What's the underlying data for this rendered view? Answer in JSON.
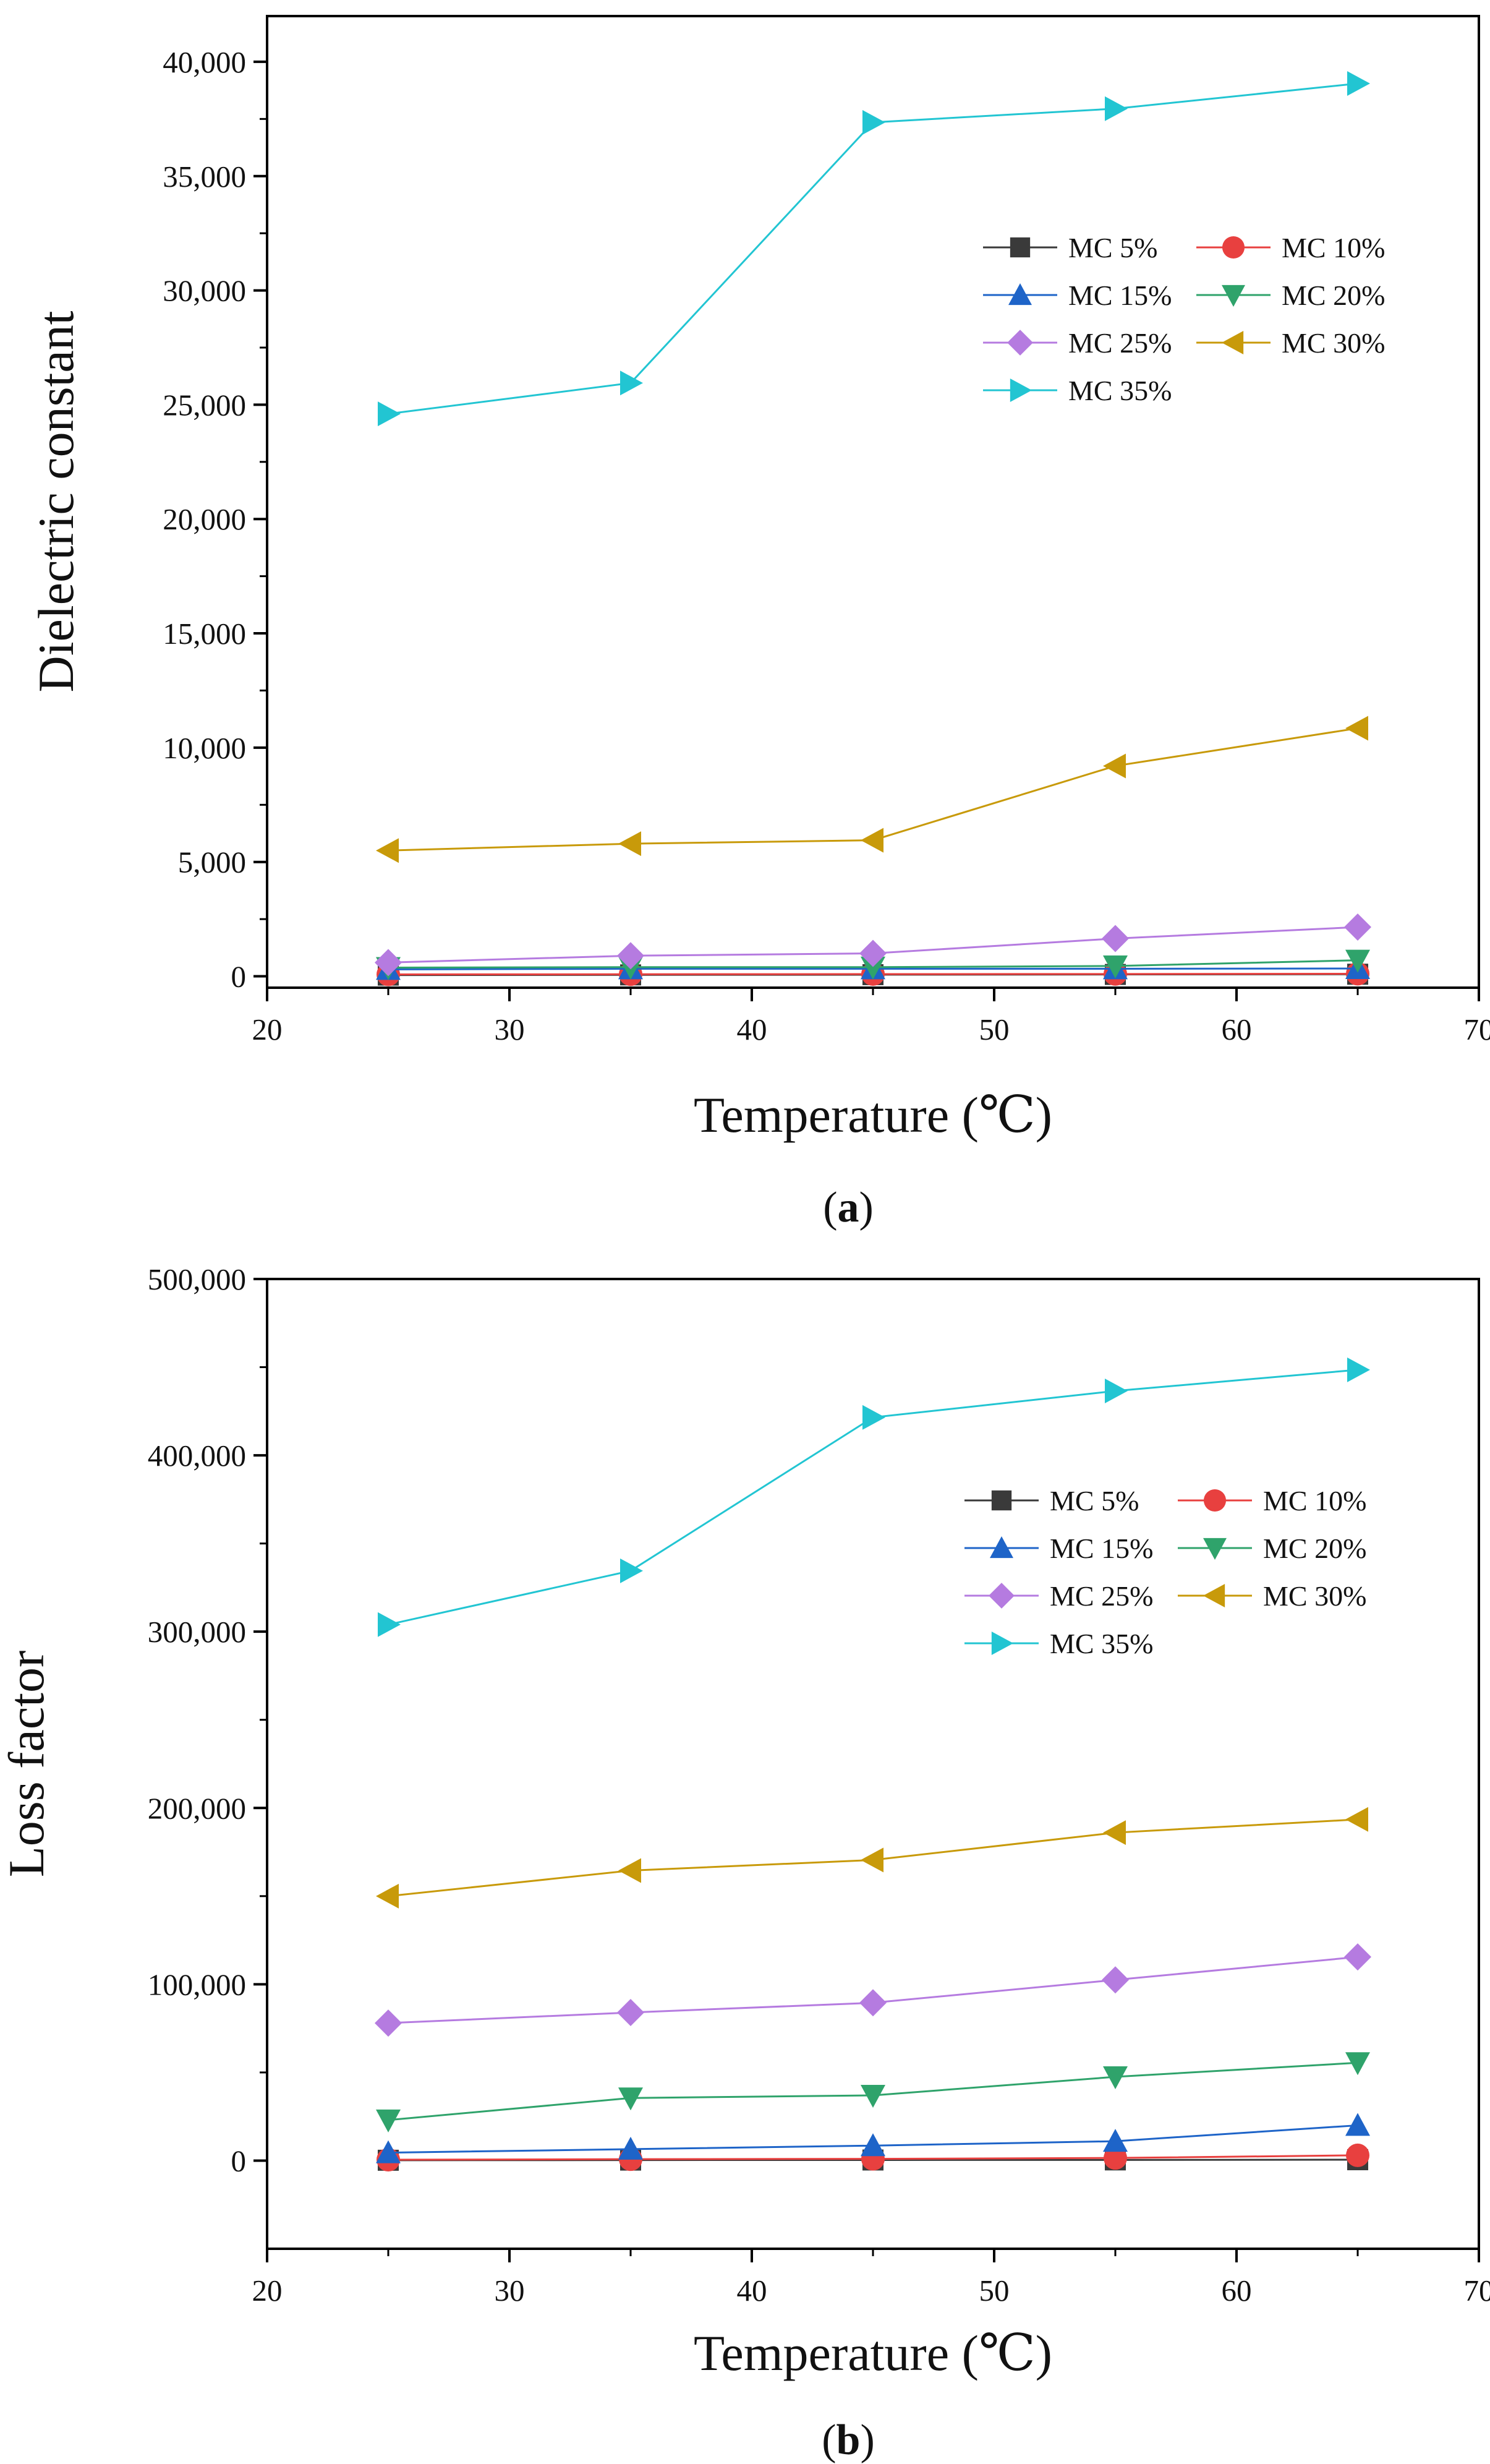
{
  "chart_data": [
    {
      "type": "line",
      "panel_label": "a",
      "xlabel": "Temperature (℃)",
      "ylabel": "Dielectric constant",
      "x": [
        25,
        35,
        45,
        55,
        65
      ],
      "xlim": [
        20,
        70
      ],
      "ylim": [
        -500,
        42000
      ],
      "xticks": [
        20,
        30,
        40,
        50,
        60,
        70
      ],
      "xtick_labels": [
        "20",
        "30",
        "40",
        "50",
        "60",
        "70"
      ],
      "yticks": [
        0,
        5000,
        10000,
        15000,
        20000,
        25000,
        30000,
        35000,
        40000
      ],
      "ytick_labels": [
        "0",
        "5,000",
        "10,000",
        "15,000",
        "20,000",
        "25,000",
        "30,000",
        "35,000",
        "40,000"
      ],
      "legend_position": "upper-right",
      "series": [
        {
          "name": "MC 5%",
          "color": "#3a3a3a",
          "marker": "square",
          "values": [
            50,
            60,
            70,
            80,
            90
          ]
        },
        {
          "name": "MC 10%",
          "color": "#e8403f",
          "marker": "circle",
          "values": [
            80,
            90,
            95,
            100,
            110
          ]
        },
        {
          "name": "MC 15%",
          "color": "#1e64c8",
          "marker": "triangle-up",
          "values": [
            300,
            330,
            330,
            330,
            340
          ]
        },
        {
          "name": "MC 20%",
          "color": "#2fa36b",
          "marker": "triangle-down",
          "values": [
            380,
            400,
            400,
            450,
            700
          ]
        },
        {
          "name": "MC 25%",
          "color": "#b57be0",
          "marker": "diamond",
          "values": [
            600,
            900,
            1000,
            1650,
            2150
          ]
        },
        {
          "name": "MC 30%",
          "color": "#c89a0a",
          "marker": "triangle-left",
          "values": [
            5500,
            5800,
            5950,
            9200,
            10850
          ]
        },
        {
          "name": "MC 35%",
          "color": "#22c5d2",
          "marker": "triangle-right",
          "values": [
            24600,
            25950,
            37350,
            37950,
            39050
          ]
        }
      ]
    },
    {
      "type": "line",
      "panel_label": "b",
      "xlabel": "Temperature (℃)",
      "ylabel": "Loss factor",
      "x": [
        25,
        35,
        45,
        55,
        65
      ],
      "xlim": [
        20,
        70
      ],
      "ylim": [
        -50000,
        500000
      ],
      "xticks": [
        20,
        30,
        40,
        50,
        60,
        70
      ],
      "xtick_labels": [
        "20",
        "30",
        "40",
        "50",
        "60",
        "70"
      ],
      "yticks": [
        0,
        100000,
        200000,
        300000,
        400000,
        500000
      ],
      "ytick_labels": [
        "0",
        "100,000",
        "200,000",
        "300,000",
        "400,000",
        "500,000"
      ],
      "legend_position": "upper-right",
      "series": [
        {
          "name": "MC 5%",
          "color": "#3a3a3a",
          "marker": "square",
          "values": [
            200,
            300,
            350,
            400,
            500
          ]
        },
        {
          "name": "MC 10%",
          "color": "#e8403f",
          "marker": "circle",
          "values": [
            500,
            800,
            1000,
            1500,
            3000
          ]
        },
        {
          "name": "MC 15%",
          "color": "#1e64c8",
          "marker": "triangle-up",
          "values": [
            4500,
            6500,
            8500,
            11000,
            20000
          ]
        },
        {
          "name": "MC 20%",
          "color": "#2fa36b",
          "marker": "triangle-down",
          "values": [
            23000,
            35500,
            37000,
            47500,
            55500
          ]
        },
        {
          "name": "MC 25%",
          "color": "#b57be0",
          "marker": "diamond",
          "values": [
            78000,
            84000,
            89500,
            102500,
            115500
          ]
        },
        {
          "name": "MC 30%",
          "color": "#c89a0a",
          "marker": "triangle-left",
          "values": [
            150000,
            164500,
            170500,
            186000,
            193500
          ]
        },
        {
          "name": "MC 35%",
          "color": "#22c5d2",
          "marker": "triangle-right",
          "values": [
            304000,
            334500,
            421500,
            436500,
            448500
          ]
        }
      ]
    }
  ]
}
